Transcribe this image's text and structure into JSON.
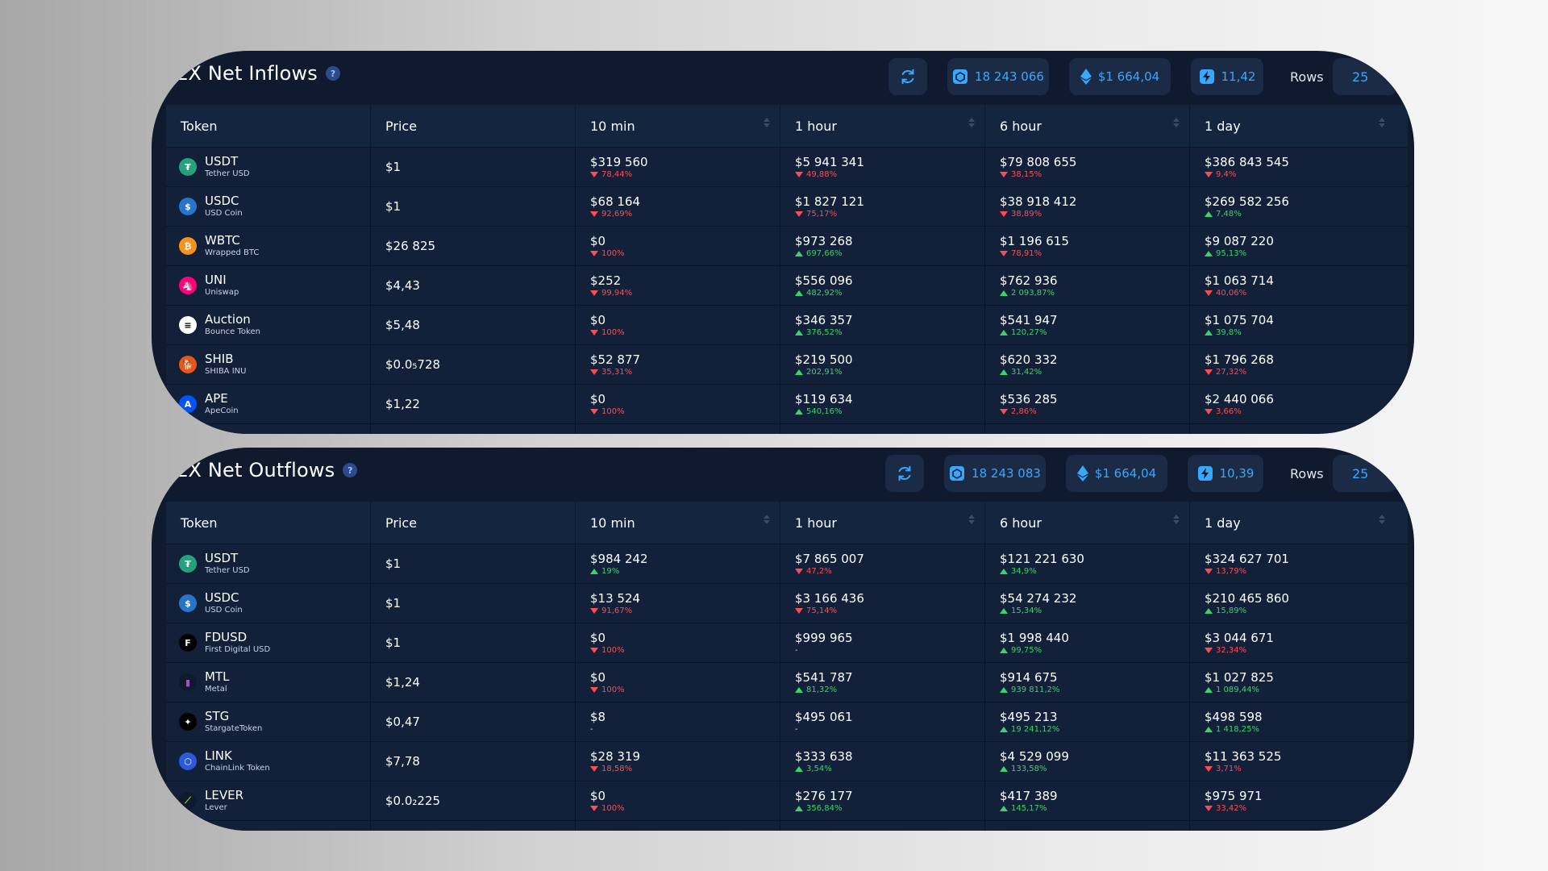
{
  "colors": {
    "up": "#37d667",
    "down": "#ff4d4f",
    "accent": "#38a8ff",
    "card_bg": "#0f1a2e"
  },
  "inflows": {
    "title": "EX Net Inflows",
    "help": "?",
    "refresh_icon": "refresh-icon",
    "block": "18 243 066",
    "eth_price": "$1 664,04",
    "gas": "11,42",
    "rows_label": "Rows",
    "rows_value": "25",
    "columns": [
      "Token",
      "Price",
      "10 min",
      "1 hour",
      "6 hour",
      "1 day"
    ],
    "rows": [
      {
        "symbol": "USDT",
        "name": "Tether USD",
        "icon": "tether-icon",
        "price": "$1",
        "m10": {
          "value": "$319 560",
          "change": "78,44%",
          "dir": "down"
        },
        "h1": {
          "value": "$5 941 341",
          "change": "49,88%",
          "dir": "down"
        },
        "h6": {
          "value": "$79 808 655",
          "change": "38,15%",
          "dir": "down"
        },
        "d1": {
          "value": "$386 843 545",
          "change": "9,4%",
          "dir": "down"
        }
      },
      {
        "symbol": "USDC",
        "name": "USD Coin",
        "icon": "usd-coin-icon",
        "price": "$1",
        "m10": {
          "value": "$68 164",
          "change": "92,69%",
          "dir": "down"
        },
        "h1": {
          "value": "$1 827 121",
          "change": "75,17%",
          "dir": "down"
        },
        "h6": {
          "value": "$38 918 412",
          "change": "38,89%",
          "dir": "down"
        },
        "d1": {
          "value": "$269 582 256",
          "change": "7,48%",
          "dir": "up"
        }
      },
      {
        "symbol": "WBTC",
        "name": "Wrapped BTC",
        "icon": "bitcoin-icon",
        "price": "$26 825",
        "m10": {
          "value": "$0",
          "change": "100%",
          "dir": "down"
        },
        "h1": {
          "value": "$973 268",
          "change": "697,66%",
          "dir": "up"
        },
        "h6": {
          "value": "$1 196 615",
          "change": "78,91%",
          "dir": "down"
        },
        "d1": {
          "value": "$9 087 220",
          "change": "95,13%",
          "dir": "up"
        }
      },
      {
        "symbol": "UNI",
        "name": "Uniswap",
        "icon": "uniswap-icon",
        "price": "$4,43",
        "m10": {
          "value": "$252",
          "change": "99,94%",
          "dir": "down"
        },
        "h1": {
          "value": "$556 096",
          "change": "482,92%",
          "dir": "up"
        },
        "h6": {
          "value": "$762 936",
          "change": "2 093,87%",
          "dir": "up"
        },
        "d1": {
          "value": "$1 063 714",
          "change": "40,06%",
          "dir": "down"
        }
      },
      {
        "symbol": "Auction",
        "name": "Bounce Token",
        "icon": "bounce-icon",
        "price": "$5,48",
        "m10": {
          "value": "$0",
          "change": "100%",
          "dir": "down"
        },
        "h1": {
          "value": "$346 357",
          "change": "376,52%",
          "dir": "up"
        },
        "h6": {
          "value": "$541 947",
          "change": "120,27%",
          "dir": "up"
        },
        "d1": {
          "value": "$1 075 704",
          "change": "39,8%",
          "dir": "up"
        }
      },
      {
        "symbol": "SHIB",
        "name": "SHIBA INU",
        "icon": "shiba-icon",
        "price": "$0.0₅728",
        "m10": {
          "value": "$52 877",
          "change": "35,31%",
          "dir": "down"
        },
        "h1": {
          "value": "$219 500",
          "change": "202,91%",
          "dir": "up"
        },
        "h6": {
          "value": "$620 332",
          "change": "31,42%",
          "dir": "up"
        },
        "d1": {
          "value": "$1 796 268",
          "change": "27,32%",
          "dir": "down"
        }
      },
      {
        "symbol": "APE",
        "name": "ApeCoin",
        "icon": "apecoin-icon",
        "price": "$1,22",
        "m10": {
          "value": "$0",
          "change": "100%",
          "dir": "down"
        },
        "h1": {
          "value": "$119 634",
          "change": "540,16%",
          "dir": "up"
        },
        "h6": {
          "value": "$536 285",
          "change": "2,86%",
          "dir": "down"
        },
        "d1": {
          "value": "$2 440 066",
          "change": "3,66%",
          "dir": "down"
        }
      }
    ]
  },
  "outflows": {
    "title": "EX Net Outflows",
    "help": "?",
    "refresh_icon": "refresh-icon",
    "block": "18 243 083",
    "eth_price": "$1 664,04",
    "gas": "10,39",
    "rows_label": "Rows",
    "rows_value": "25",
    "columns": [
      "Token",
      "Price",
      "10 min",
      "1 hour",
      "6 hour",
      "1 day"
    ],
    "rows": [
      {
        "symbol": "USDT",
        "name": "Tether USD",
        "icon": "tether-icon",
        "price": "$1",
        "m10": {
          "value": "$984 242",
          "change": "19%",
          "dir": "up"
        },
        "h1": {
          "value": "$7 865 007",
          "change": "47,2%",
          "dir": "down"
        },
        "h6": {
          "value": "$121 221 630",
          "change": "34,9%",
          "dir": "up"
        },
        "d1": {
          "value": "$324 627 701",
          "change": "13,79%",
          "dir": "down"
        }
      },
      {
        "symbol": "USDC",
        "name": "USD Coin",
        "icon": "usd-coin-icon",
        "price": "$1",
        "m10": {
          "value": "$13 524",
          "change": "91,67%",
          "dir": "down"
        },
        "h1": {
          "value": "$3 166 436",
          "change": "75,14%",
          "dir": "down"
        },
        "h6": {
          "value": "$54 274 232",
          "change": "15,34%",
          "dir": "up"
        },
        "d1": {
          "value": "$210 465 860",
          "change": "15,89%",
          "dir": "up"
        }
      },
      {
        "symbol": "FDUSD",
        "name": "First Digital USD",
        "icon": "fdusd-icon",
        "price": "$1",
        "m10": {
          "value": "$0",
          "change": "100%",
          "dir": "down"
        },
        "h1": {
          "value": "$999 965",
          "change": "-",
          "dir": "neutral"
        },
        "h6": {
          "value": "$1 998 440",
          "change": "99,75%",
          "dir": "up"
        },
        "d1": {
          "value": "$3 044 671",
          "change": "32,34%",
          "dir": "down"
        }
      },
      {
        "symbol": "MTL",
        "name": "Metal",
        "icon": "metal-icon",
        "price": "$1,24",
        "m10": {
          "value": "$0",
          "change": "100%",
          "dir": "down"
        },
        "h1": {
          "value": "$541 787",
          "change": "81,32%",
          "dir": "up"
        },
        "h6": {
          "value": "$914 675",
          "change": "939 811,2%",
          "dir": "up"
        },
        "d1": {
          "value": "$1 027 825",
          "change": "1 089,44%",
          "dir": "up"
        }
      },
      {
        "symbol": "STG",
        "name": "StargateToken",
        "icon": "stargate-icon",
        "price": "$0,47",
        "m10": {
          "value": "$8",
          "change": "-",
          "dir": "neutral"
        },
        "h1": {
          "value": "$495 061",
          "change": "-",
          "dir": "neutral"
        },
        "h6": {
          "value": "$495 213",
          "change": "19 241,12%",
          "dir": "up"
        },
        "d1": {
          "value": "$498 598",
          "change": "1 418,25%",
          "dir": "up"
        }
      },
      {
        "symbol": "LINK",
        "name": "ChainLink Token",
        "icon": "chainlink-icon",
        "price": "$7,78",
        "m10": {
          "value": "$28 319",
          "change": "18,58%",
          "dir": "down"
        },
        "h1": {
          "value": "$333 638",
          "change": "3,54%",
          "dir": "up"
        },
        "h6": {
          "value": "$4 529 099",
          "change": "133,58%",
          "dir": "up"
        },
        "d1": {
          "value": "$11 363 525",
          "change": "3,71%",
          "dir": "down"
        }
      },
      {
        "symbol": "LEVER",
        "name": "Lever",
        "icon": "lever-icon",
        "price": "$0.0₂225",
        "m10": {
          "value": "$0",
          "change": "100%",
          "dir": "down"
        },
        "h1": {
          "value": "$276 177",
          "change": "356,84%",
          "dir": "up"
        },
        "h6": {
          "value": "$417 389",
          "change": "145,17%",
          "dir": "up"
        },
        "d1": {
          "value": "$975 971",
          "change": "33,42%",
          "dir": "down"
        }
      }
    ]
  }
}
